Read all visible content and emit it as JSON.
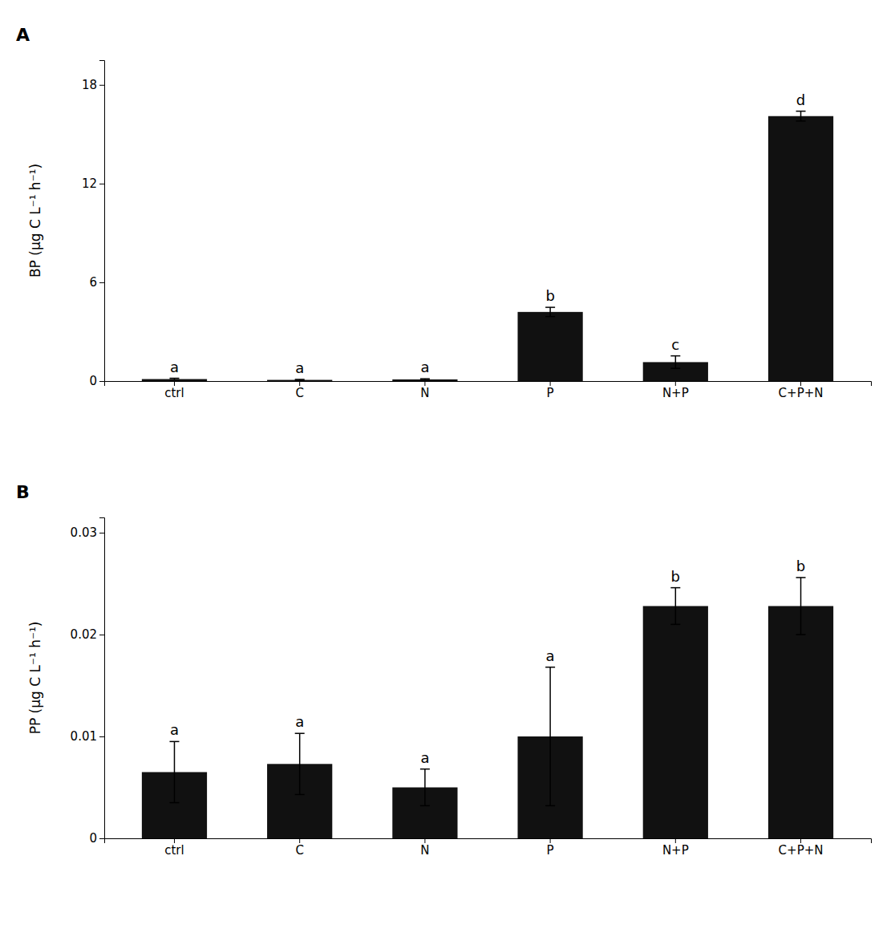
{
  "chart_data": [
    {
      "type": "bar",
      "title": "A",
      "categories": [
        "ctrl",
        "C",
        "N",
        "P",
        "N+P",
        "C+P+N"
      ],
      "values": [
        0.12,
        0.07,
        0.1,
        4.2,
        1.15,
        16.1
      ],
      "errors": [
        0.05,
        0.03,
        0.04,
        0.28,
        0.38,
        0.3
      ],
      "annotations": [
        "a",
        "a",
        "a",
        "b",
        "c",
        "d"
      ],
      "ylabel": "BP (μg C L⁻¹ h⁻¹)",
      "ylim": [
        0,
        19.5
      ],
      "yticks": [
        0,
        6,
        12,
        18
      ],
      "color": "#111111",
      "grid": false
    },
    {
      "type": "bar",
      "title": "B",
      "categories": [
        "ctrl",
        "C",
        "N",
        "P",
        "N+P",
        "C+P+N"
      ],
      "values": [
        0.0065,
        0.0073,
        0.005,
        0.01,
        0.0228,
        0.0228
      ],
      "errors": [
        0.003,
        0.003,
        0.0018,
        0.0068,
        0.0018,
        0.0028
      ],
      "annotations": [
        "a",
        "a",
        "a",
        "a",
        "b",
        "b"
      ],
      "ylabel": "PP (μg C L⁻¹ h⁻¹)",
      "ylim": [
        0,
        0.0315
      ],
      "yticks": [
        0,
        0.01,
        0.02,
        0.03
      ],
      "color": "#111111",
      "grid": false
    }
  ]
}
